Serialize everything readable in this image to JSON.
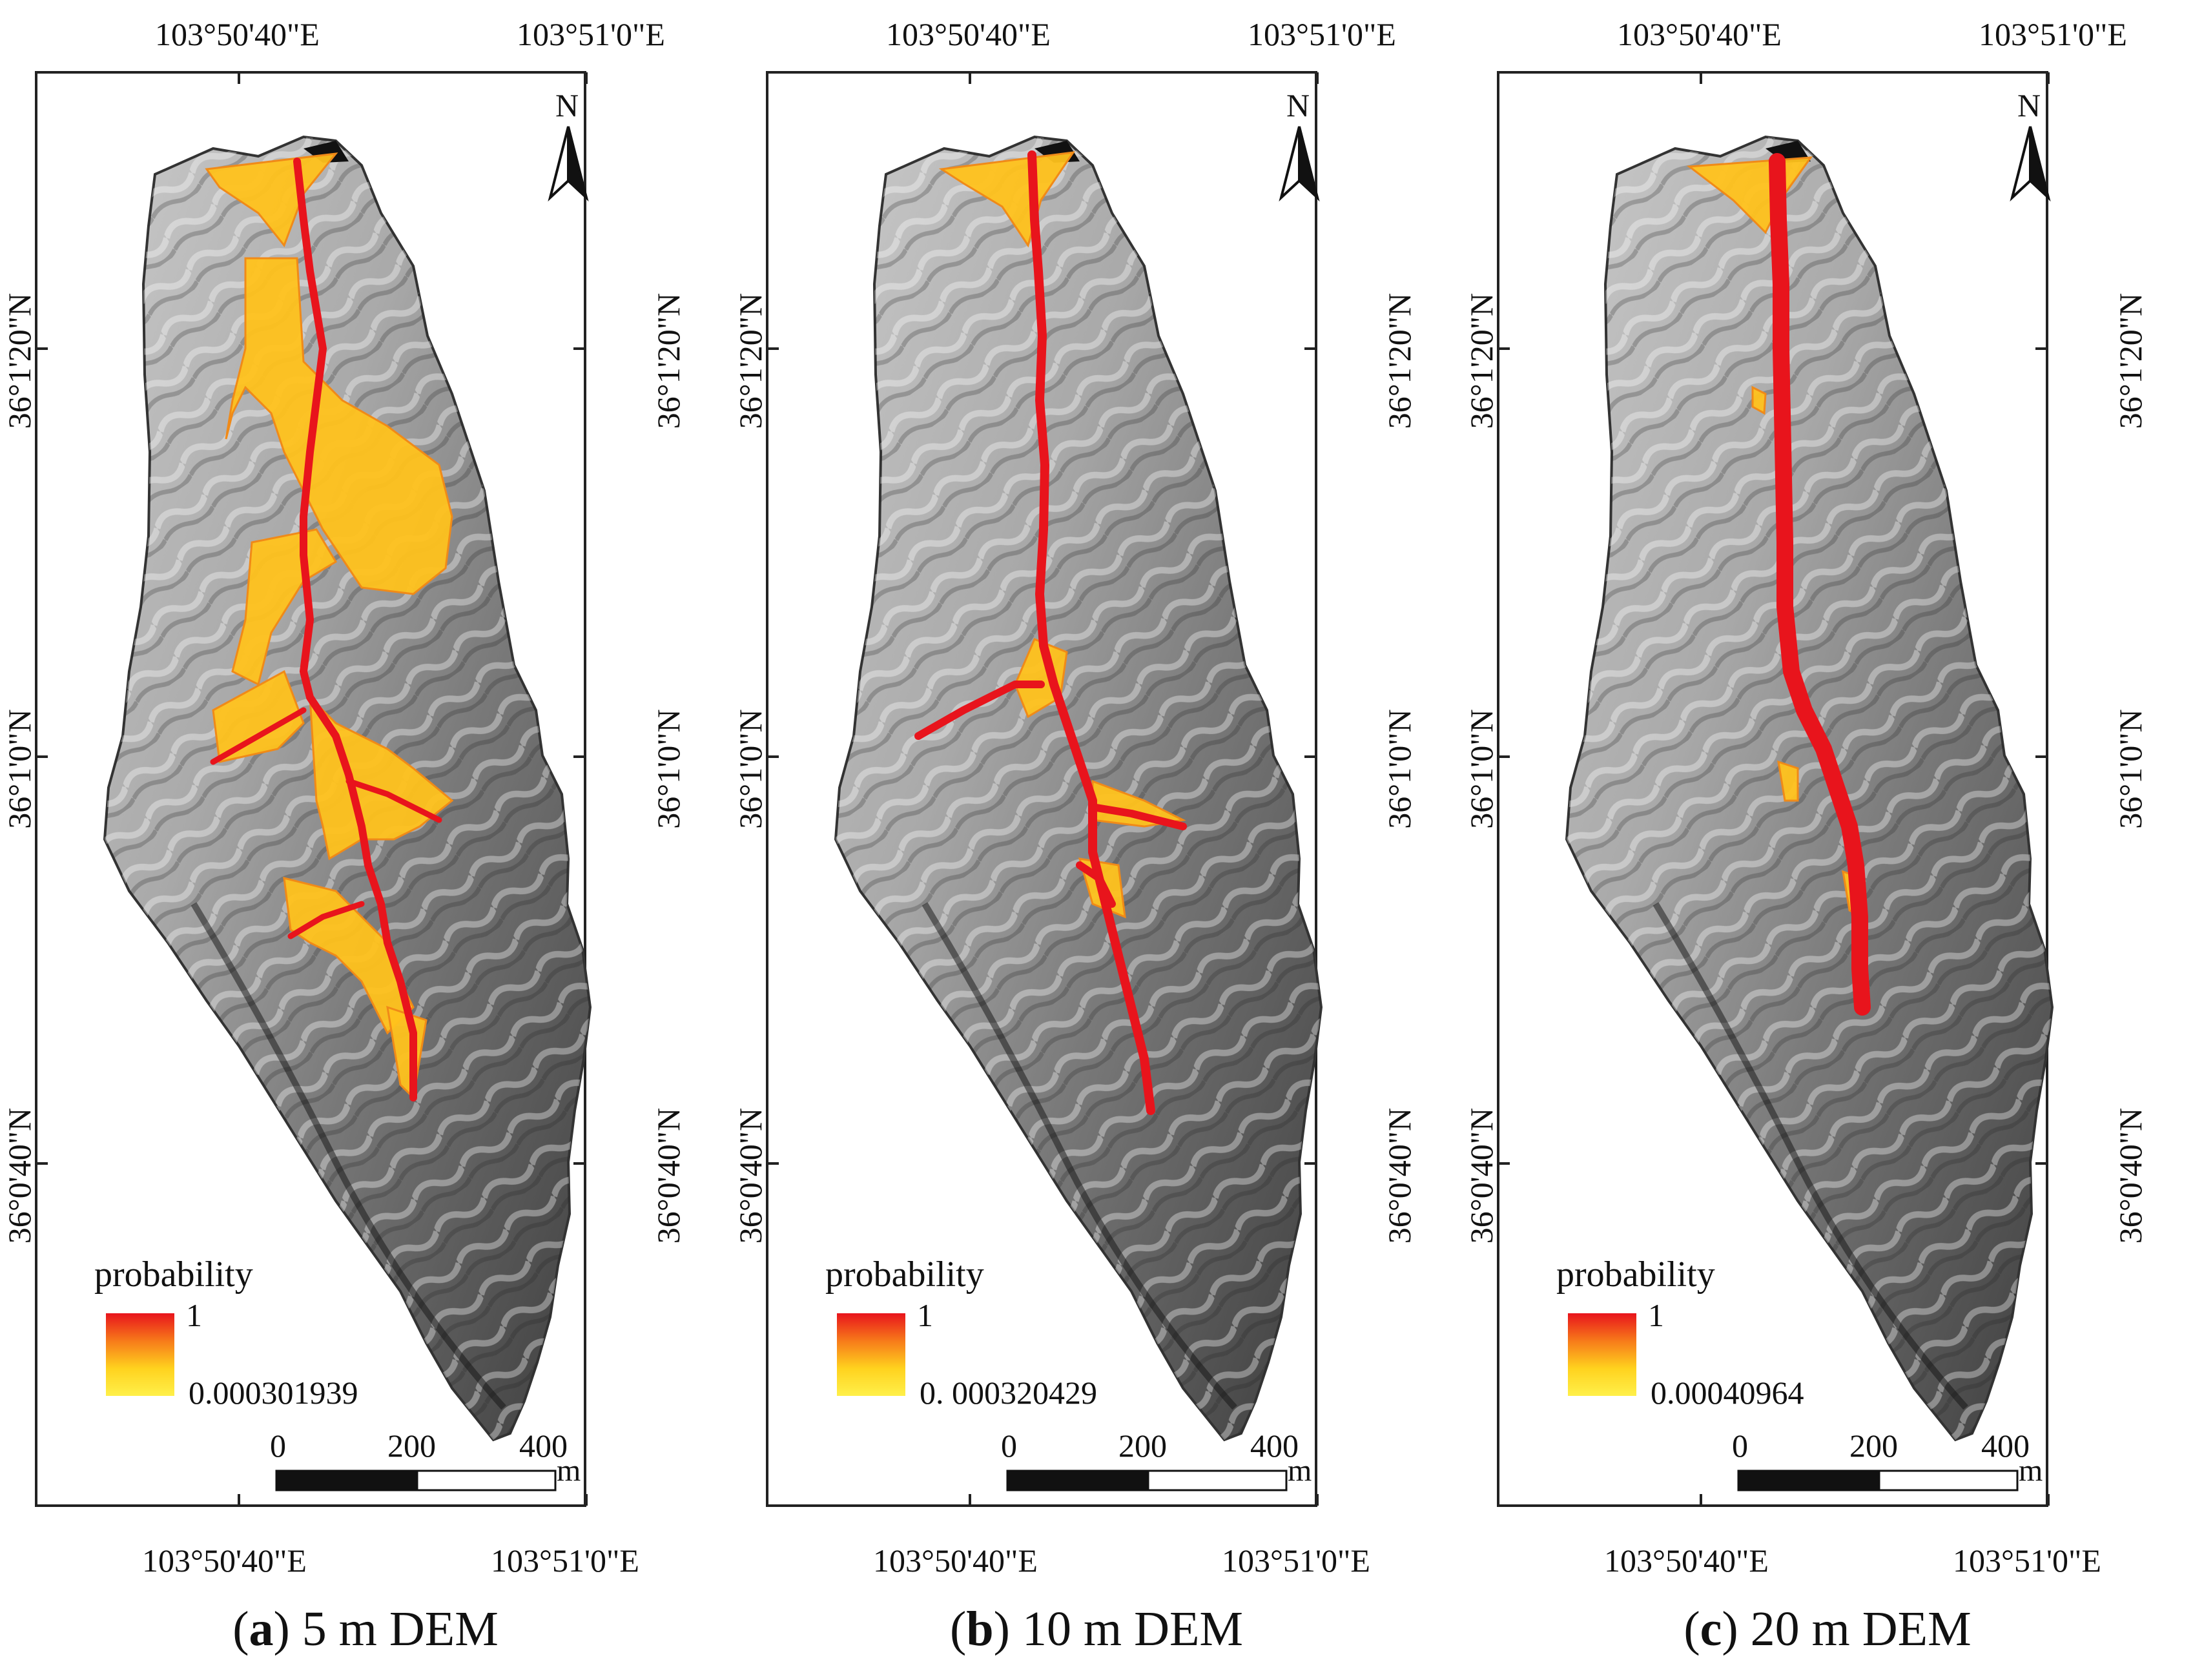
{
  "panels": [
    {
      "id": "a",
      "letter": "a",
      "caption_rest": ") 5 m DEM",
      "legend_min": "0.000301939",
      "pattern": "wide"
    },
    {
      "id": "b",
      "letter": "b",
      "caption_rest": ") 10 m DEM",
      "legend_min": "0. 000320429",
      "pattern": "branched"
    },
    {
      "id": "c",
      "letter": "c",
      "caption_rest": ") 20 m DEM",
      "legend_min": "0.00040964",
      "pattern": "single"
    }
  ],
  "axes": {
    "lon_left": "103°50'40\"E",
    "lon_right": "103°51'0\"E",
    "lat_upper": "36°1'20\"N",
    "lat_middle": "36°1'0\"N",
    "lat_lower": "36°0'40\"N"
  },
  "legend": {
    "title": "probability",
    "max": "1",
    "gradient_colors": [
      "#e8141c",
      "#f77a1a",
      "#ffd21e",
      "#fff04a"
    ]
  },
  "scale_bar": {
    "labels": [
      "0",
      "200",
      "400"
    ],
    "unit": "m"
  },
  "north_arrow": {
    "letter": "N"
  },
  "caption_open": "("
}
